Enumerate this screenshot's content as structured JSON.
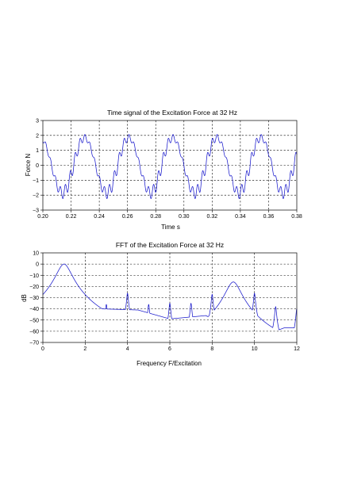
{
  "chart_data": [
    {
      "type": "line",
      "title": "Time signal of the Excitation Force at 32 Hz",
      "xlabel": "Time s",
      "ylabel": "Force N",
      "xlim": [
        0.2,
        0.38
      ],
      "ylim": [
        -3,
        3
      ],
      "xticks": [
        "0.20",
        "0.22",
        "0.24",
        "0.26",
        "0.28",
        "0.30",
        "0.32",
        "0.34",
        "0.36",
        "0.38"
      ],
      "yticks": [
        "3",
        "2",
        "1",
        "0",
        "−1",
        "−2",
        "−3"
      ],
      "grid": true,
      "line_color": "#1a1acc",
      "signal": {
        "fundamental_hz": 32,
        "components": [
          {
            "harmonic": 1,
            "amplitude": 1.85
          },
          {
            "harmonic": 9,
            "amplitude": 0.3
          },
          {
            "harmonic": 8,
            "amplitude": 0.08
          },
          {
            "harmonic": 10,
            "amplitude": 0.06
          }
        ]
      }
    },
    {
      "type": "line",
      "title": "FFT of the Excitation Force at 32 Hz",
      "xlabel": "Frequency  F/Excitation",
      "ylabel": "dB",
      "xlim": [
        0,
        12
      ],
      "ylim": [
        -70,
        10
      ],
      "xticks": [
        "0",
        "2",
        "4",
        "6",
        "8",
        "10",
        "12"
      ],
      "yticks": [
        "10",
        "0",
        "−10",
        "−20",
        "−30",
        "−40",
        "−50",
        "−60",
        "−70"
      ],
      "grid": true,
      "line_color": "#1a1acc",
      "peaks": [
        {
          "x": 1,
          "y": 0
        },
        {
          "x": 2,
          "y": -33
        },
        {
          "x": 3,
          "y": -36
        },
        {
          "x": 4,
          "y": -26
        },
        {
          "x": 5,
          "y": -36
        },
        {
          "x": 6,
          "y": -35
        },
        {
          "x": 7,
          "y": -35
        },
        {
          "x": 8,
          "y": -27
        },
        {
          "x": 9,
          "y": -16
        },
        {
          "x": 10,
          "y": -26
        },
        {
          "x": 11,
          "y": -38
        },
        {
          "x": 12,
          "y": -40
        }
      ],
      "valleys": [
        {
          "x": 0,
          "y": -48
        },
        {
          "x": 2.8,
          "y": -40
        },
        {
          "x": 4.5,
          "y": -41
        },
        {
          "x": 6,
          "y": -49
        },
        {
          "x": 7.7,
          "y": -46
        },
        {
          "x": 10,
          "y": -67
        },
        {
          "x": 11.4,
          "y": -57
        }
      ]
    }
  ]
}
